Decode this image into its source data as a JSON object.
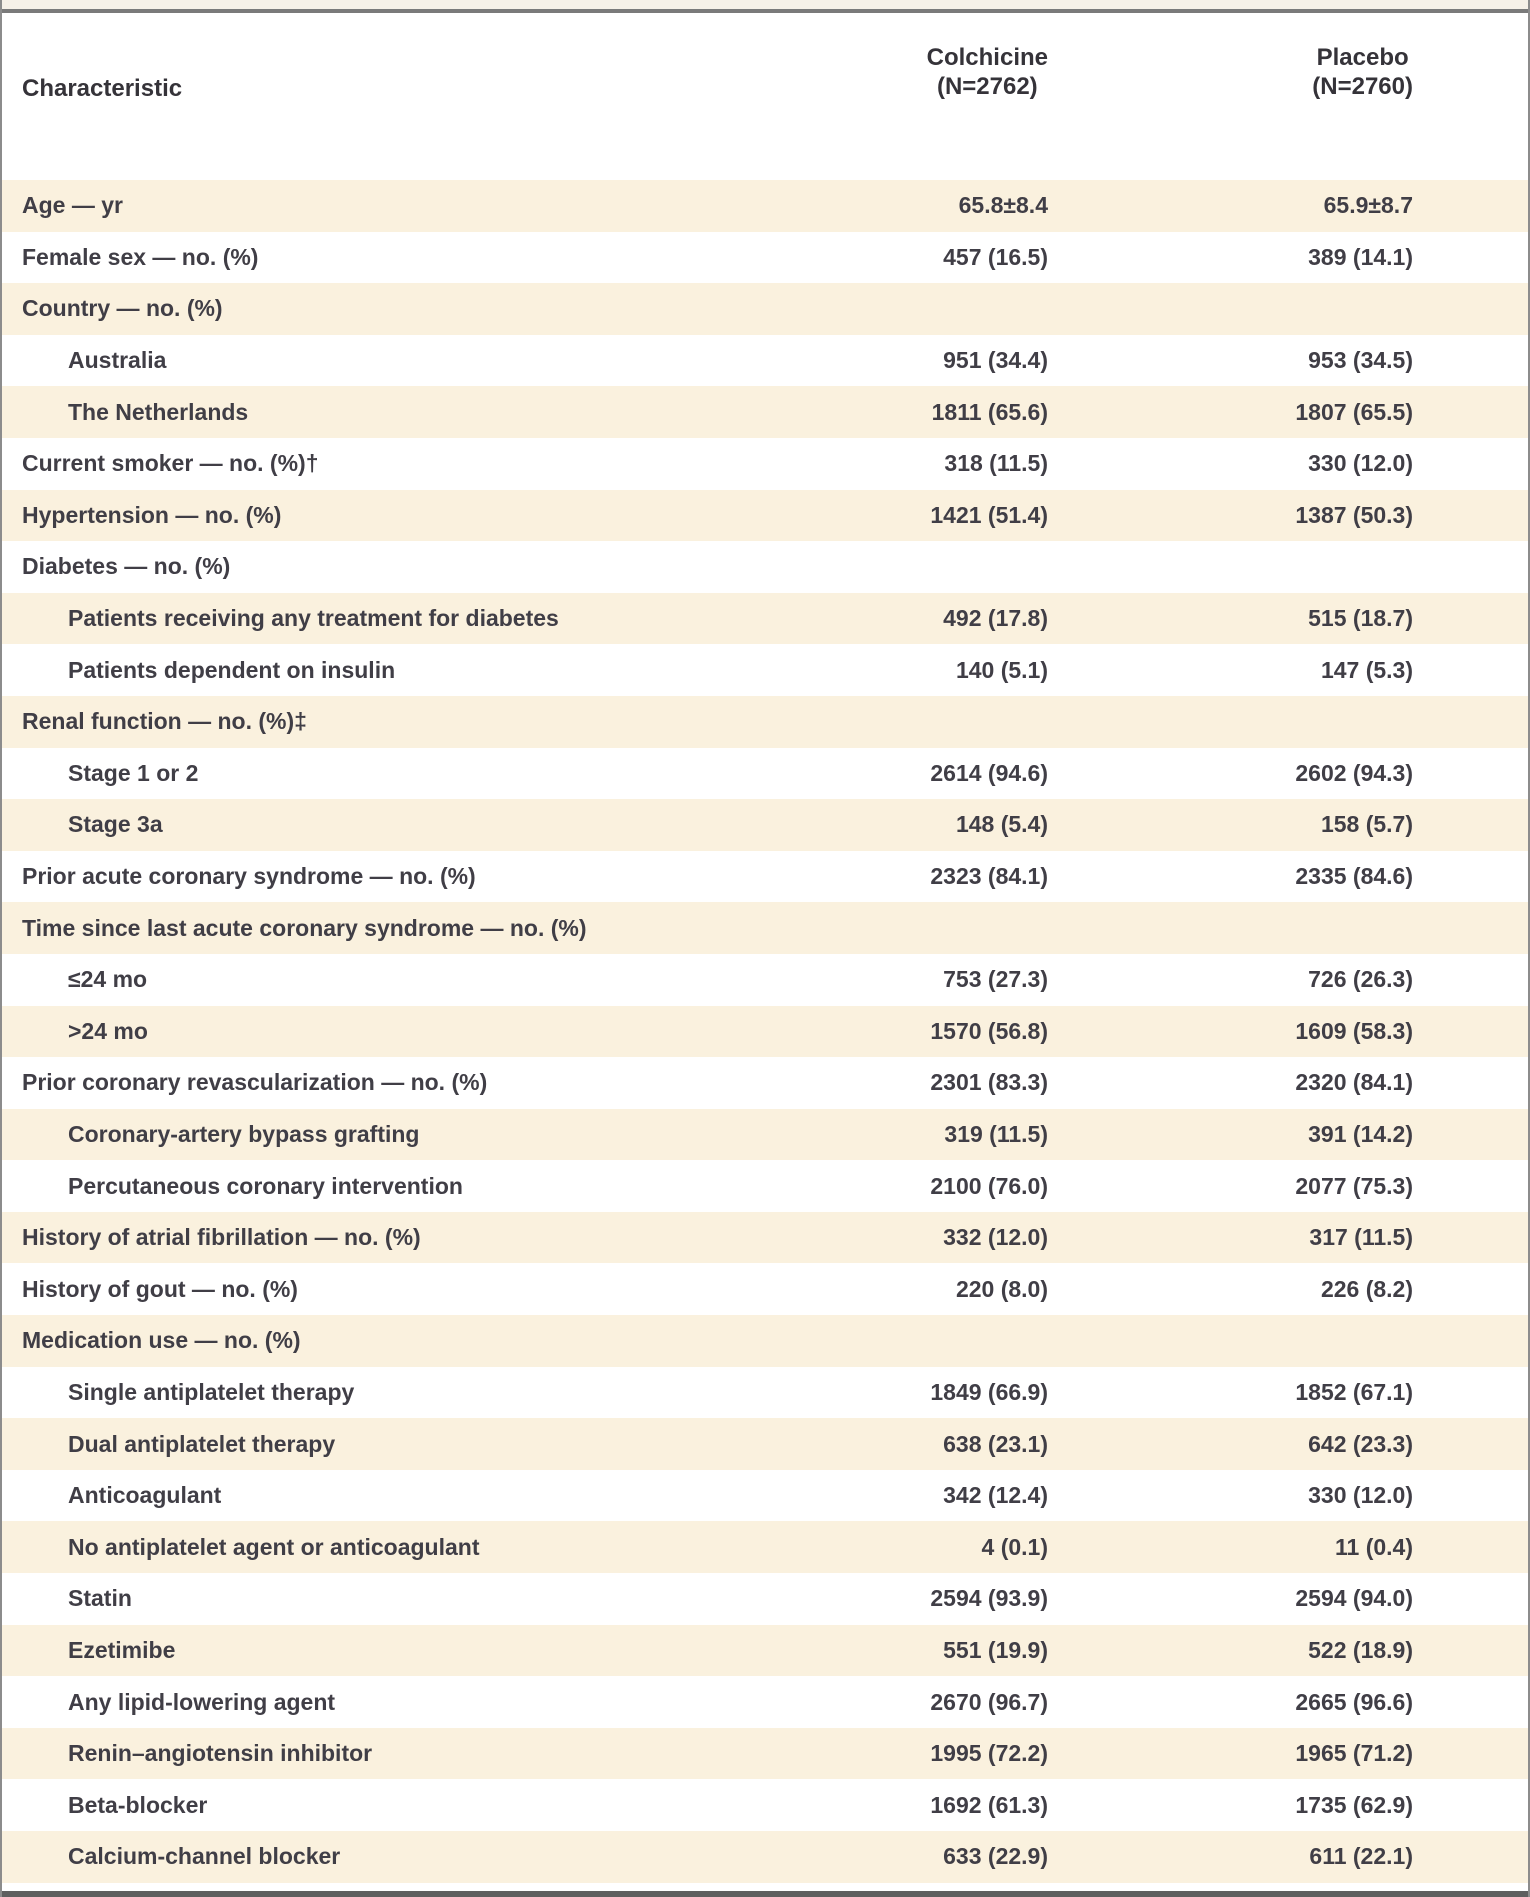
{
  "table": {
    "header": {
      "characteristic": "Characteristic",
      "col1_name": "Colchicine",
      "col1_n": "(N=2762)",
      "col2_name": "Placebo",
      "col2_n": "(N=2760)"
    },
    "rows": [
      {
        "label": "Age — yr",
        "indent": 0,
        "c1": "65.8±8.4",
        "c2": "65.9±8.7"
      },
      {
        "label": "Female sex — no. (%)",
        "indent": 0,
        "c1": "457 (16.5)",
        "c2": "389 (14.1)"
      },
      {
        "label": "Country — no. (%)",
        "indent": 0,
        "c1": "",
        "c2": ""
      },
      {
        "label": "Australia",
        "indent": 1,
        "c1": "951 (34.4)",
        "c2": "953 (34.5)"
      },
      {
        "label": "The Netherlands",
        "indent": 1,
        "c1": "1811 (65.6)",
        "c2": "1807 (65.5)"
      },
      {
        "label": "Current smoker — no. (%)†",
        "indent": 0,
        "c1": "318 (11.5)",
        "c2": "330 (12.0)"
      },
      {
        "label": "Hypertension — no. (%)",
        "indent": 0,
        "c1": "1421 (51.4)",
        "c2": "1387 (50.3)"
      },
      {
        "label": "Diabetes — no. (%)",
        "indent": 0,
        "c1": "",
        "c2": ""
      },
      {
        "label": "Patients receiving any treatment for diabetes",
        "indent": 1,
        "c1": "492 (17.8)",
        "c2": "515 (18.7)"
      },
      {
        "label": "Patients dependent on insulin",
        "indent": 1,
        "c1": "140 (5.1)",
        "c2": "147 (5.3)"
      },
      {
        "label": "Renal function — no. (%)‡",
        "indent": 0,
        "c1": "",
        "c2": ""
      },
      {
        "label": "Stage 1 or 2",
        "indent": 1,
        "c1": "2614 (94.6)",
        "c2": "2602 (94.3)"
      },
      {
        "label": "Stage 3a",
        "indent": 1,
        "c1": "148 (5.4)",
        "c2": "158 (5.7)"
      },
      {
        "label": "Prior acute coronary syndrome — no. (%)",
        "indent": 0,
        "c1": "2323 (84.1)",
        "c2": "2335 (84.6)"
      },
      {
        "label": "Time since last acute coronary syndrome — no. (%)",
        "indent": 0,
        "c1": "",
        "c2": ""
      },
      {
        "label": "≤24 mo",
        "indent": 1,
        "c1": "753 (27.3)",
        "c2": "726 (26.3)"
      },
      {
        "label": ">24 mo",
        "indent": 1,
        "c1": "1570 (56.8)",
        "c2": "1609 (58.3)"
      },
      {
        "label": "Prior coronary revascularization — no. (%)",
        "indent": 0,
        "c1": "2301 (83.3)",
        "c2": "2320 (84.1)"
      },
      {
        "label": "Coronary-artery bypass grafting",
        "indent": 1,
        "c1": "319 (11.5)",
        "c2": "391 (14.2)"
      },
      {
        "label": "Percutaneous coronary intervention",
        "indent": 1,
        "c1": "2100 (76.0)",
        "c2": "2077 (75.3)"
      },
      {
        "label": "History of atrial fibrillation — no. (%)",
        "indent": 0,
        "c1": "332 (12.0)",
        "c2": "317 (11.5)"
      },
      {
        "label": "History of gout — no. (%)",
        "indent": 0,
        "c1": "220 (8.0)",
        "c2": "226 (8.2)"
      },
      {
        "label": "Medication use — no. (%)",
        "indent": 0,
        "c1": "",
        "c2": ""
      },
      {
        "label": "Single antiplatelet therapy",
        "indent": 1,
        "c1": "1849 (66.9)",
        "c2": "1852 (67.1)"
      },
      {
        "label": "Dual antiplatelet therapy",
        "indent": 1,
        "c1": "638 (23.1)",
        "c2": "642 (23.3)"
      },
      {
        "label": "Anticoagulant",
        "indent": 1,
        "c1": "342 (12.4)",
        "c2": "330 (12.0)"
      },
      {
        "label": "No antiplatelet agent or anticoagulant",
        "indent": 1,
        "c1": "4 (0.1)",
        "c2": "11 (0.4)"
      },
      {
        "label": "Statin",
        "indent": 1,
        "c1": "2594 (93.9)",
        "c2": "2594 (94.0)"
      },
      {
        "label": "Ezetimibe",
        "indent": 1,
        "c1": "551 (19.9)",
        "c2": "522 (18.9)"
      },
      {
        "label": "Any lipid-lowering agent",
        "indent": 1,
        "c1": "2670 (96.7)",
        "c2": "2665 (96.6)"
      },
      {
        "label": "Renin–angiotensin inhibitor",
        "indent": 1,
        "c1": "1995 (72.2)",
        "c2": "1965 (71.2)"
      },
      {
        "label": "Beta-blocker",
        "indent": 1,
        "c1": "1692 (61.3)",
        "c2": "1735 (62.9)"
      },
      {
        "label": "Calcium-channel blocker",
        "indent": 1,
        "c1": "633 (22.9)",
        "c2": "611 (22.1)"
      }
    ],
    "colors": {
      "stripe": "#FAF1DE",
      "frame_side": "#8C8C8C",
      "top_rule": "#7A7A7A",
      "bottom_rule": "#5F5F5F",
      "text": "#403E46",
      "header_text": "#353339"
    }
  }
}
